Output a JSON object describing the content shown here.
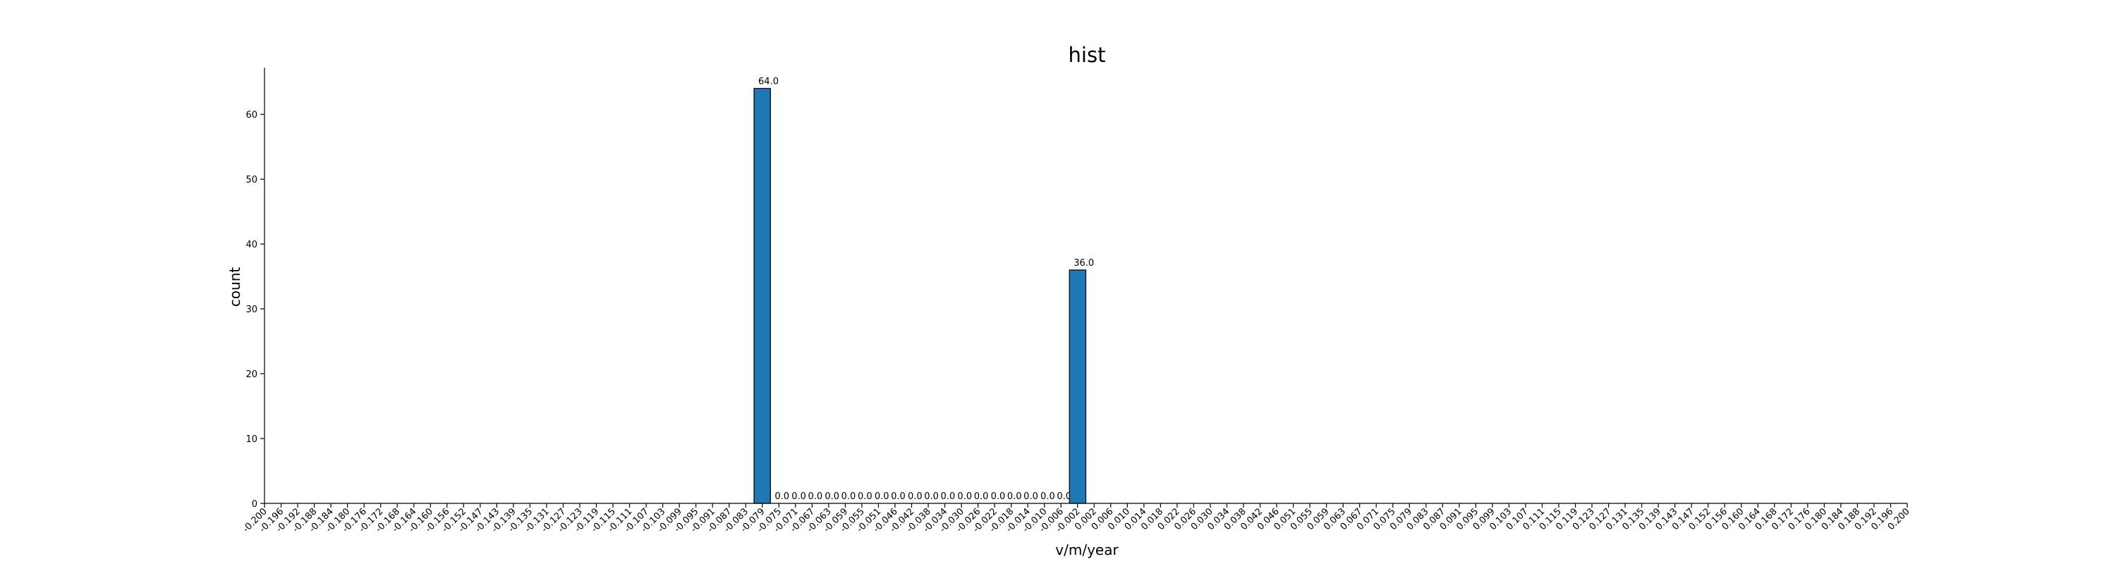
{
  "chart_data": {
    "type": "bar",
    "title": "hist",
    "xlabel": "v/m/year",
    "ylabel": "count",
    "xlim": [
      -0.2,
      0.2
    ],
    "ylim": [
      0,
      67.2
    ],
    "y_ticks": [
      0,
      10,
      20,
      30,
      40,
      50,
      60
    ],
    "x_tick_labels": [
      "-0.200",
      "-0.196",
      "-0.192",
      "-0.188",
      "-0.184",
      "-0.180",
      "-0.176",
      "-0.172",
      "-0.168",
      "-0.164",
      "-0.160",
      "-0.156",
      "-0.152",
      "-0.147",
      "-0.143",
      "-0.139",
      "-0.135",
      "-0.131",
      "-0.127",
      "-0.123",
      "-0.119",
      "-0.115",
      "-0.111",
      "-0.107",
      "-0.103",
      "-0.099",
      "-0.095",
      "-0.091",
      "-0.087",
      "-0.083",
      "-0.079",
      "-0.075",
      "-0.071",
      "-0.067",
      "-0.063",
      "-0.059",
      "-0.055",
      "-0.051",
      "-0.046",
      "-0.042",
      "-0.038",
      "-0.034",
      "-0.030",
      "-0.026",
      "-0.022",
      "-0.018",
      "-0.014",
      "-0.010",
      "-0.006",
      "-0.002",
      "0.002",
      "0.006",
      "0.010",
      "0.014",
      "0.018",
      "0.022",
      "0.026",
      "0.030",
      "0.034",
      "0.038",
      "0.042",
      "0.046",
      "0.051",
      "0.055",
      "0.059",
      "0.063",
      "0.067",
      "0.071",
      "0.075",
      "0.079",
      "0.083",
      "0.087",
      "0.091",
      "0.095",
      "0.099",
      "0.103",
      "0.107",
      "0.111",
      "0.115",
      "0.119",
      "0.123",
      "0.127",
      "0.131",
      "0.135",
      "0.139",
      "0.143",
      "0.147",
      "0.152",
      "0.156",
      "0.160",
      "0.164",
      "0.168",
      "0.172",
      "0.176",
      "0.180",
      "0.184",
      "0.188",
      "0.192",
      "0.196",
      "0.200"
    ],
    "bins": [
      {
        "x0": -0.0808,
        "x1": -0.0768,
        "value": 64.0,
        "label": "64.0"
      },
      {
        "x0": -0.0768,
        "x1": -0.0727,
        "value": 0.0,
        "label": "0.0"
      },
      {
        "x0": -0.0727,
        "x1": -0.0687,
        "value": 0.0,
        "label": "0.0"
      },
      {
        "x0": -0.0687,
        "x1": -0.0646,
        "value": 0.0,
        "label": "0.0"
      },
      {
        "x0": -0.0646,
        "x1": -0.0606,
        "value": 0.0,
        "label": "0.0"
      },
      {
        "x0": -0.0606,
        "x1": -0.0566,
        "value": 0.0,
        "label": "0.0"
      },
      {
        "x0": -0.0566,
        "x1": -0.0525,
        "value": 0.0,
        "label": "0.0"
      },
      {
        "x0": -0.0525,
        "x1": -0.0485,
        "value": 0.0,
        "label": "0.0"
      },
      {
        "x0": -0.0485,
        "x1": -0.0444,
        "value": 0.0,
        "label": "0.0"
      },
      {
        "x0": -0.0444,
        "x1": -0.0404,
        "value": 0.0,
        "label": "0.0"
      },
      {
        "x0": -0.0404,
        "x1": -0.0364,
        "value": 0.0,
        "label": "0.0"
      },
      {
        "x0": -0.0364,
        "x1": -0.0323,
        "value": 0.0,
        "label": "0.0"
      },
      {
        "x0": -0.0323,
        "x1": -0.0283,
        "value": 0.0,
        "label": "0.0"
      },
      {
        "x0": -0.0283,
        "x1": -0.0242,
        "value": 0.0,
        "label": "0.0"
      },
      {
        "x0": -0.0242,
        "x1": -0.0202,
        "value": 0.0,
        "label": "0.0"
      },
      {
        "x0": -0.0202,
        "x1": -0.0162,
        "value": 0.0,
        "label": "0.0"
      },
      {
        "x0": -0.0162,
        "x1": -0.0121,
        "value": 0.0,
        "label": "0.0"
      },
      {
        "x0": -0.0121,
        "x1": -0.0081,
        "value": 0.0,
        "label": "0.0"
      },
      {
        "x0": -0.0081,
        "x1": -0.004,
        "value": 0.0,
        "label": "0.0"
      },
      {
        "x0": -0.004,
        "x1": 0.0,
        "value": 36.0,
        "label": "36.0"
      }
    ],
    "bar_color": "#1f77b4",
    "edge_color": "#000000",
    "grid": false,
    "legend": "none"
  }
}
